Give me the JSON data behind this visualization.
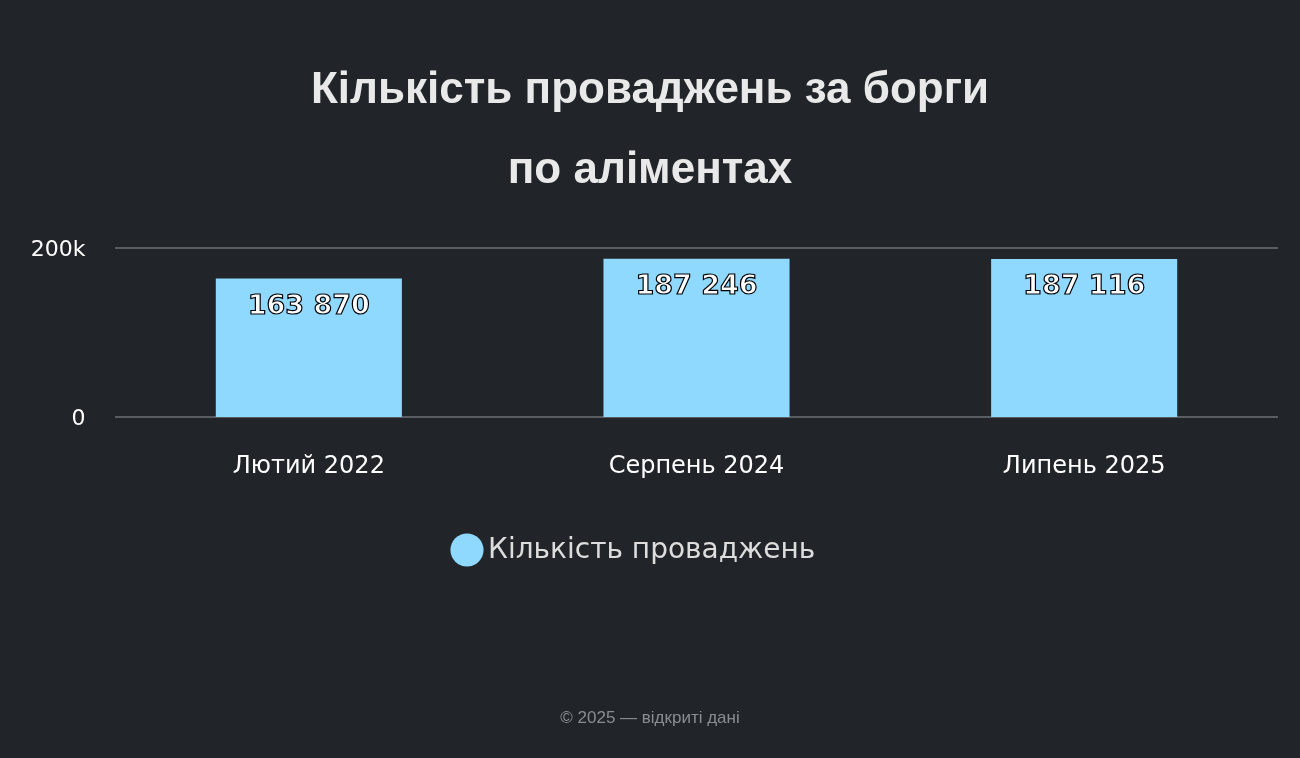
{
  "chart_data": {
    "type": "bar",
    "title": "Кількість проваджень за борги по аліментах",
    "categories": [
      "Лютий 2022",
      "Серпень 2024",
      "Липень 2025"
    ],
    "series": [
      {
        "name": "Кількість проваджень",
        "color": "#8fd8ff",
        "values": [
          163870,
          187246,
          187116
        ],
        "value_labels": [
          "163 870",
          "187 246",
          "187 116"
        ]
      }
    ],
    "ylim": [
      0,
      200000
    ],
    "yticks": [
      0,
      {
        "value": 200000,
        "label": "200k"
      }
    ],
    "legend": "bottom",
    "marker": "circle",
    "annotations": [
      "© 2025 — відкриті дані"
    ]
  }
}
